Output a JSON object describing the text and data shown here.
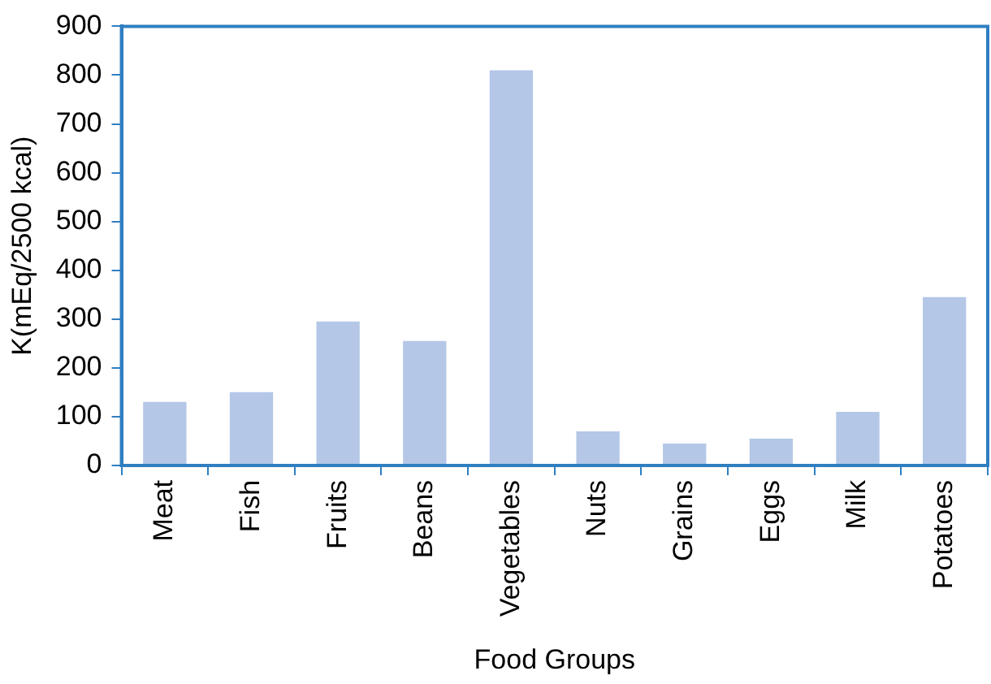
{
  "chart_data": {
    "type": "bar",
    "xlabel": "Food Groups",
    "ylabel": "K(mEq/2500 kcal)",
    "categories": [
      "Meat",
      "Fish",
      "Fruits",
      "Beans",
      "Vegetables",
      "Nuts",
      "Grains",
      "Eggs",
      "Milk",
      "Potatoes"
    ],
    "values": [
      130,
      150,
      295,
      255,
      810,
      70,
      45,
      55,
      110,
      345
    ],
    "color": "#b4c7e7",
    "ylim": [
      0,
      900
    ],
    "yticks": [
      0,
      100,
      200,
      300,
      400,
      500,
      600,
      700,
      800,
      900
    ],
    "grid": false,
    "legend": false
  }
}
